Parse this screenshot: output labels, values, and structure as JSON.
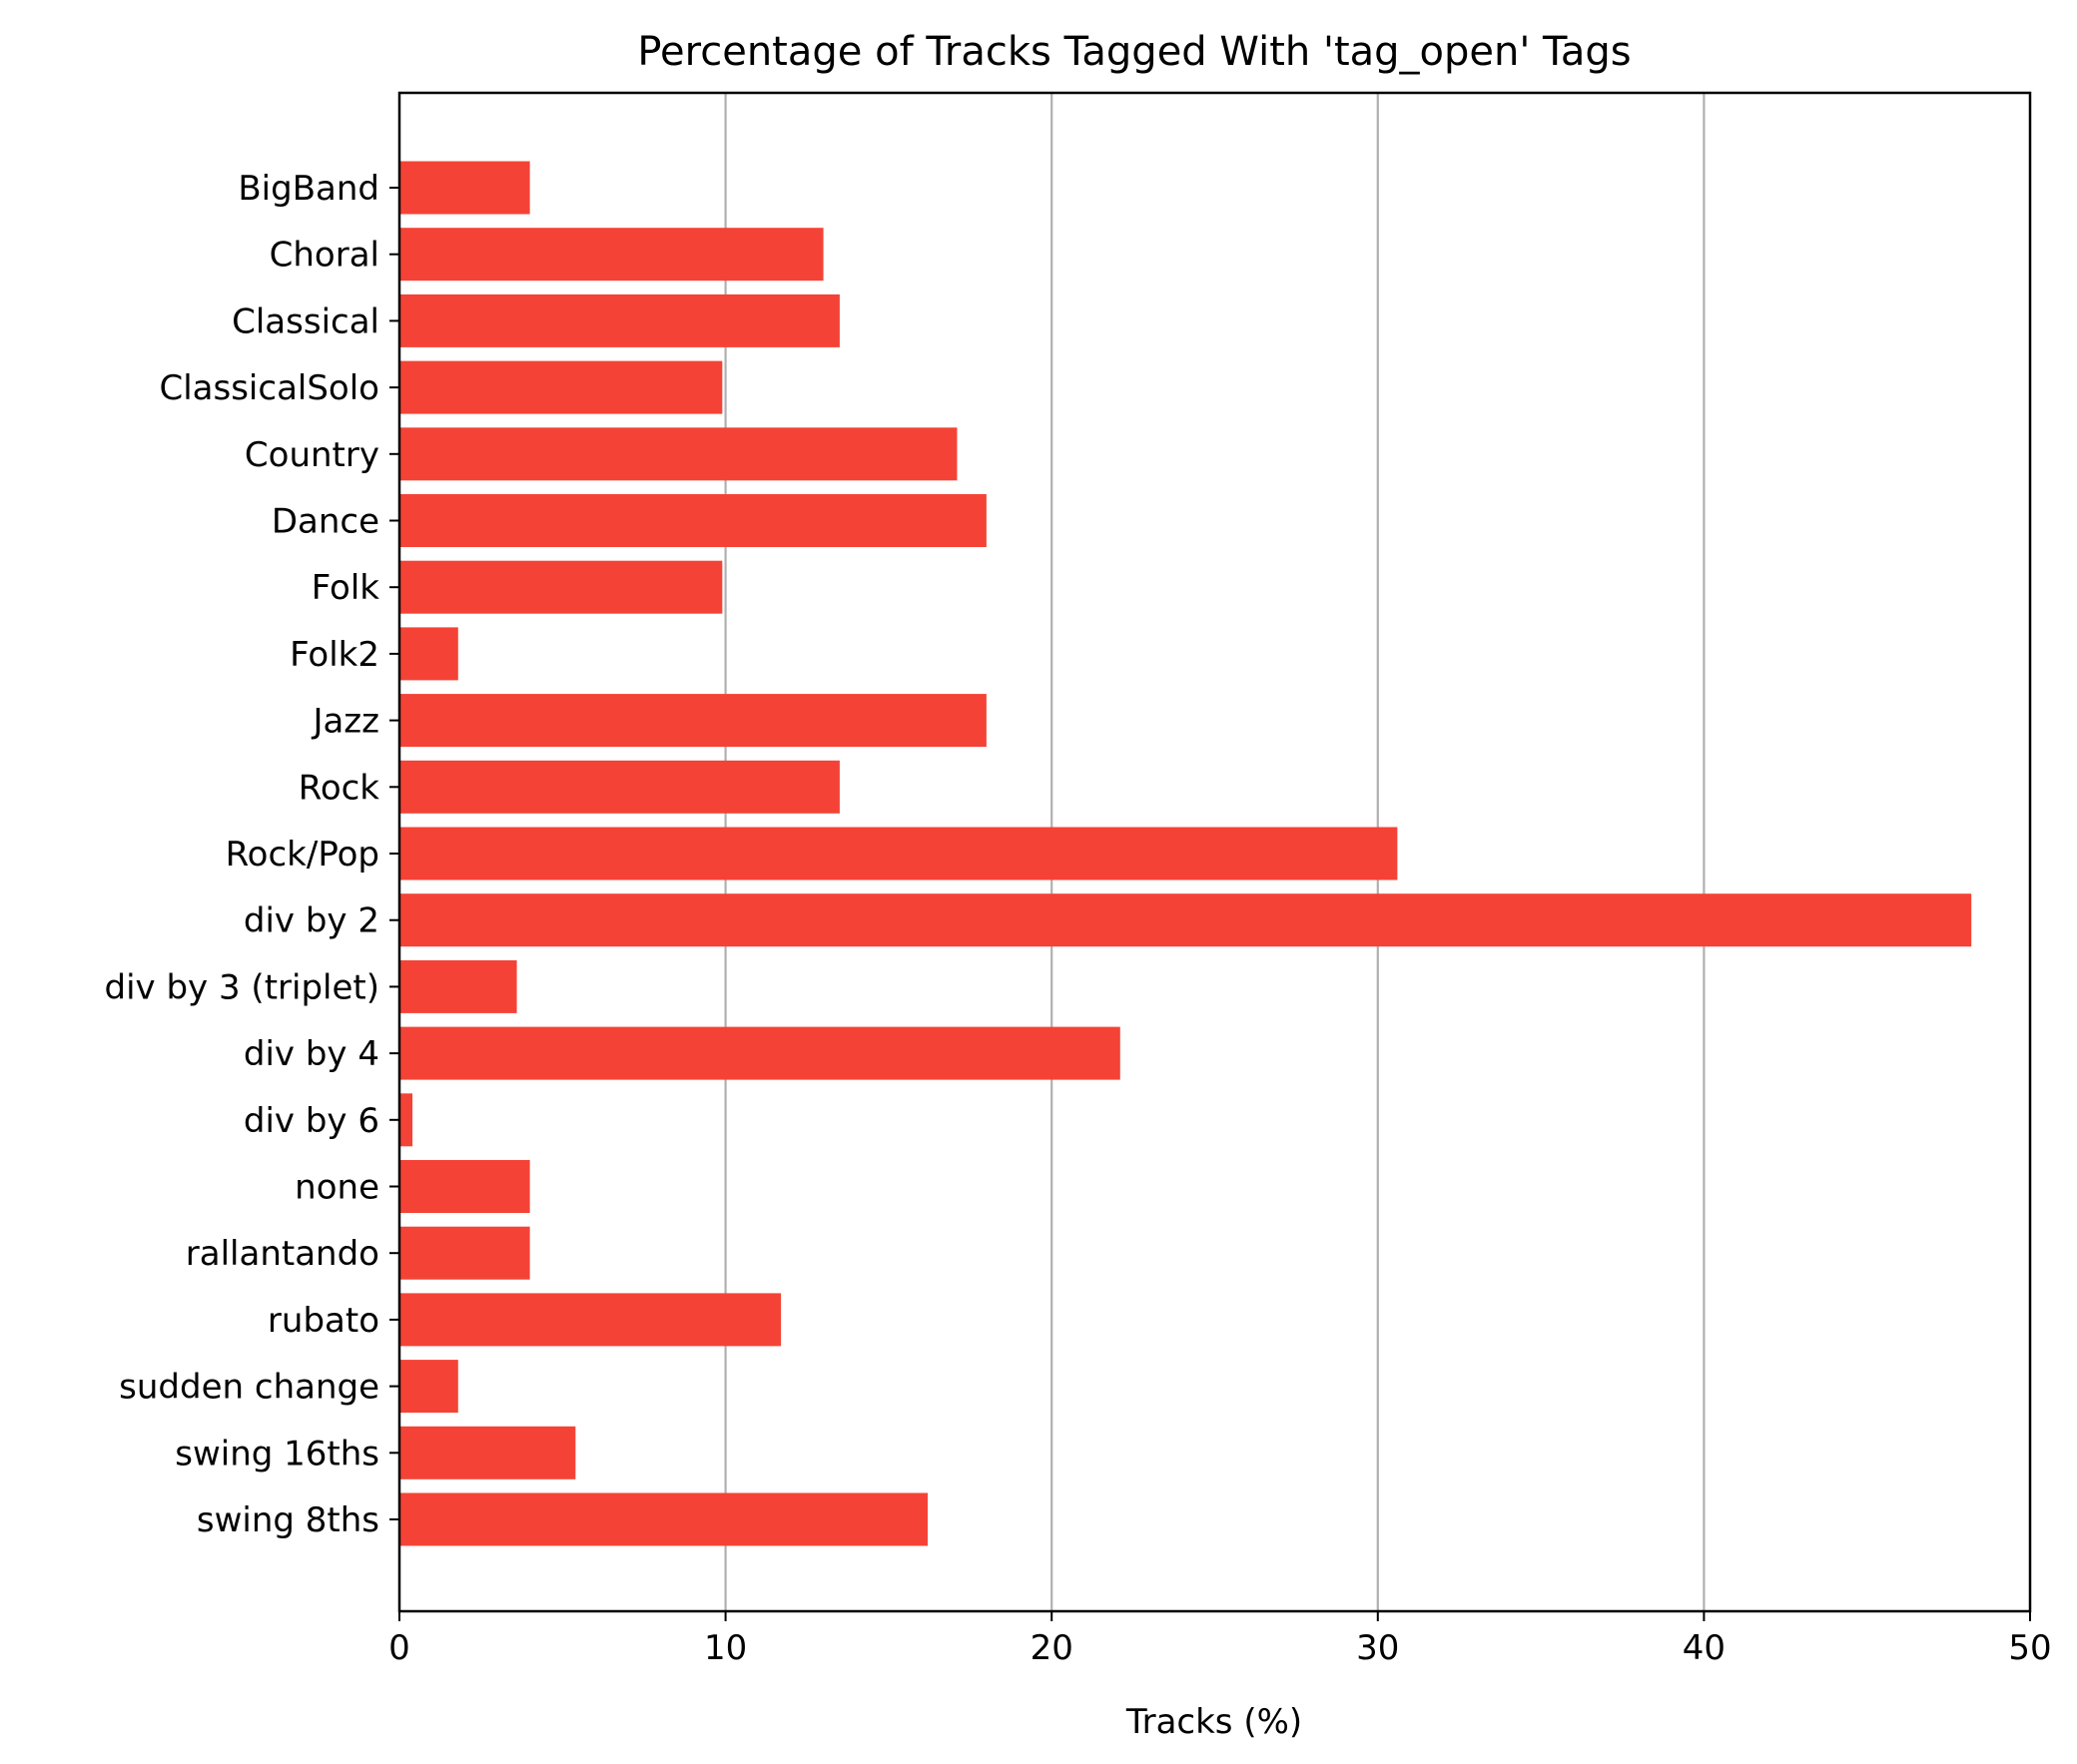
{
  "chart_data": {
    "type": "bar",
    "orientation": "horizontal",
    "title": "Percentage of Tracks Tagged With 'tag_open' Tags",
    "xlabel": "Tracks (%)",
    "ylabel": "",
    "xlim": [
      0,
      50
    ],
    "xticks": [
      0,
      10,
      20,
      30,
      40,
      50
    ],
    "grid": "vertical",
    "bar_color": "#f44336",
    "categories": [
      "BigBand",
      "Choral",
      "Classical",
      "ClassicalSolo",
      "Country",
      "Dance",
      "Folk",
      "Folk2",
      "Jazz",
      "Rock",
      "Rock/Pop",
      "div by 2",
      "div by 3 (triplet)",
      "div by 4",
      "div by 6",
      "none",
      "rallantando",
      "rubato",
      "sudden change",
      "swing 16ths",
      "swing 8ths"
    ],
    "values": [
      4.0,
      13.0,
      13.5,
      9.9,
      17.1,
      18.0,
      9.9,
      1.8,
      18.0,
      13.5,
      30.6,
      48.2,
      3.6,
      22.1,
      0.4,
      4.0,
      4.0,
      11.7,
      1.8,
      5.4,
      16.2
    ]
  }
}
